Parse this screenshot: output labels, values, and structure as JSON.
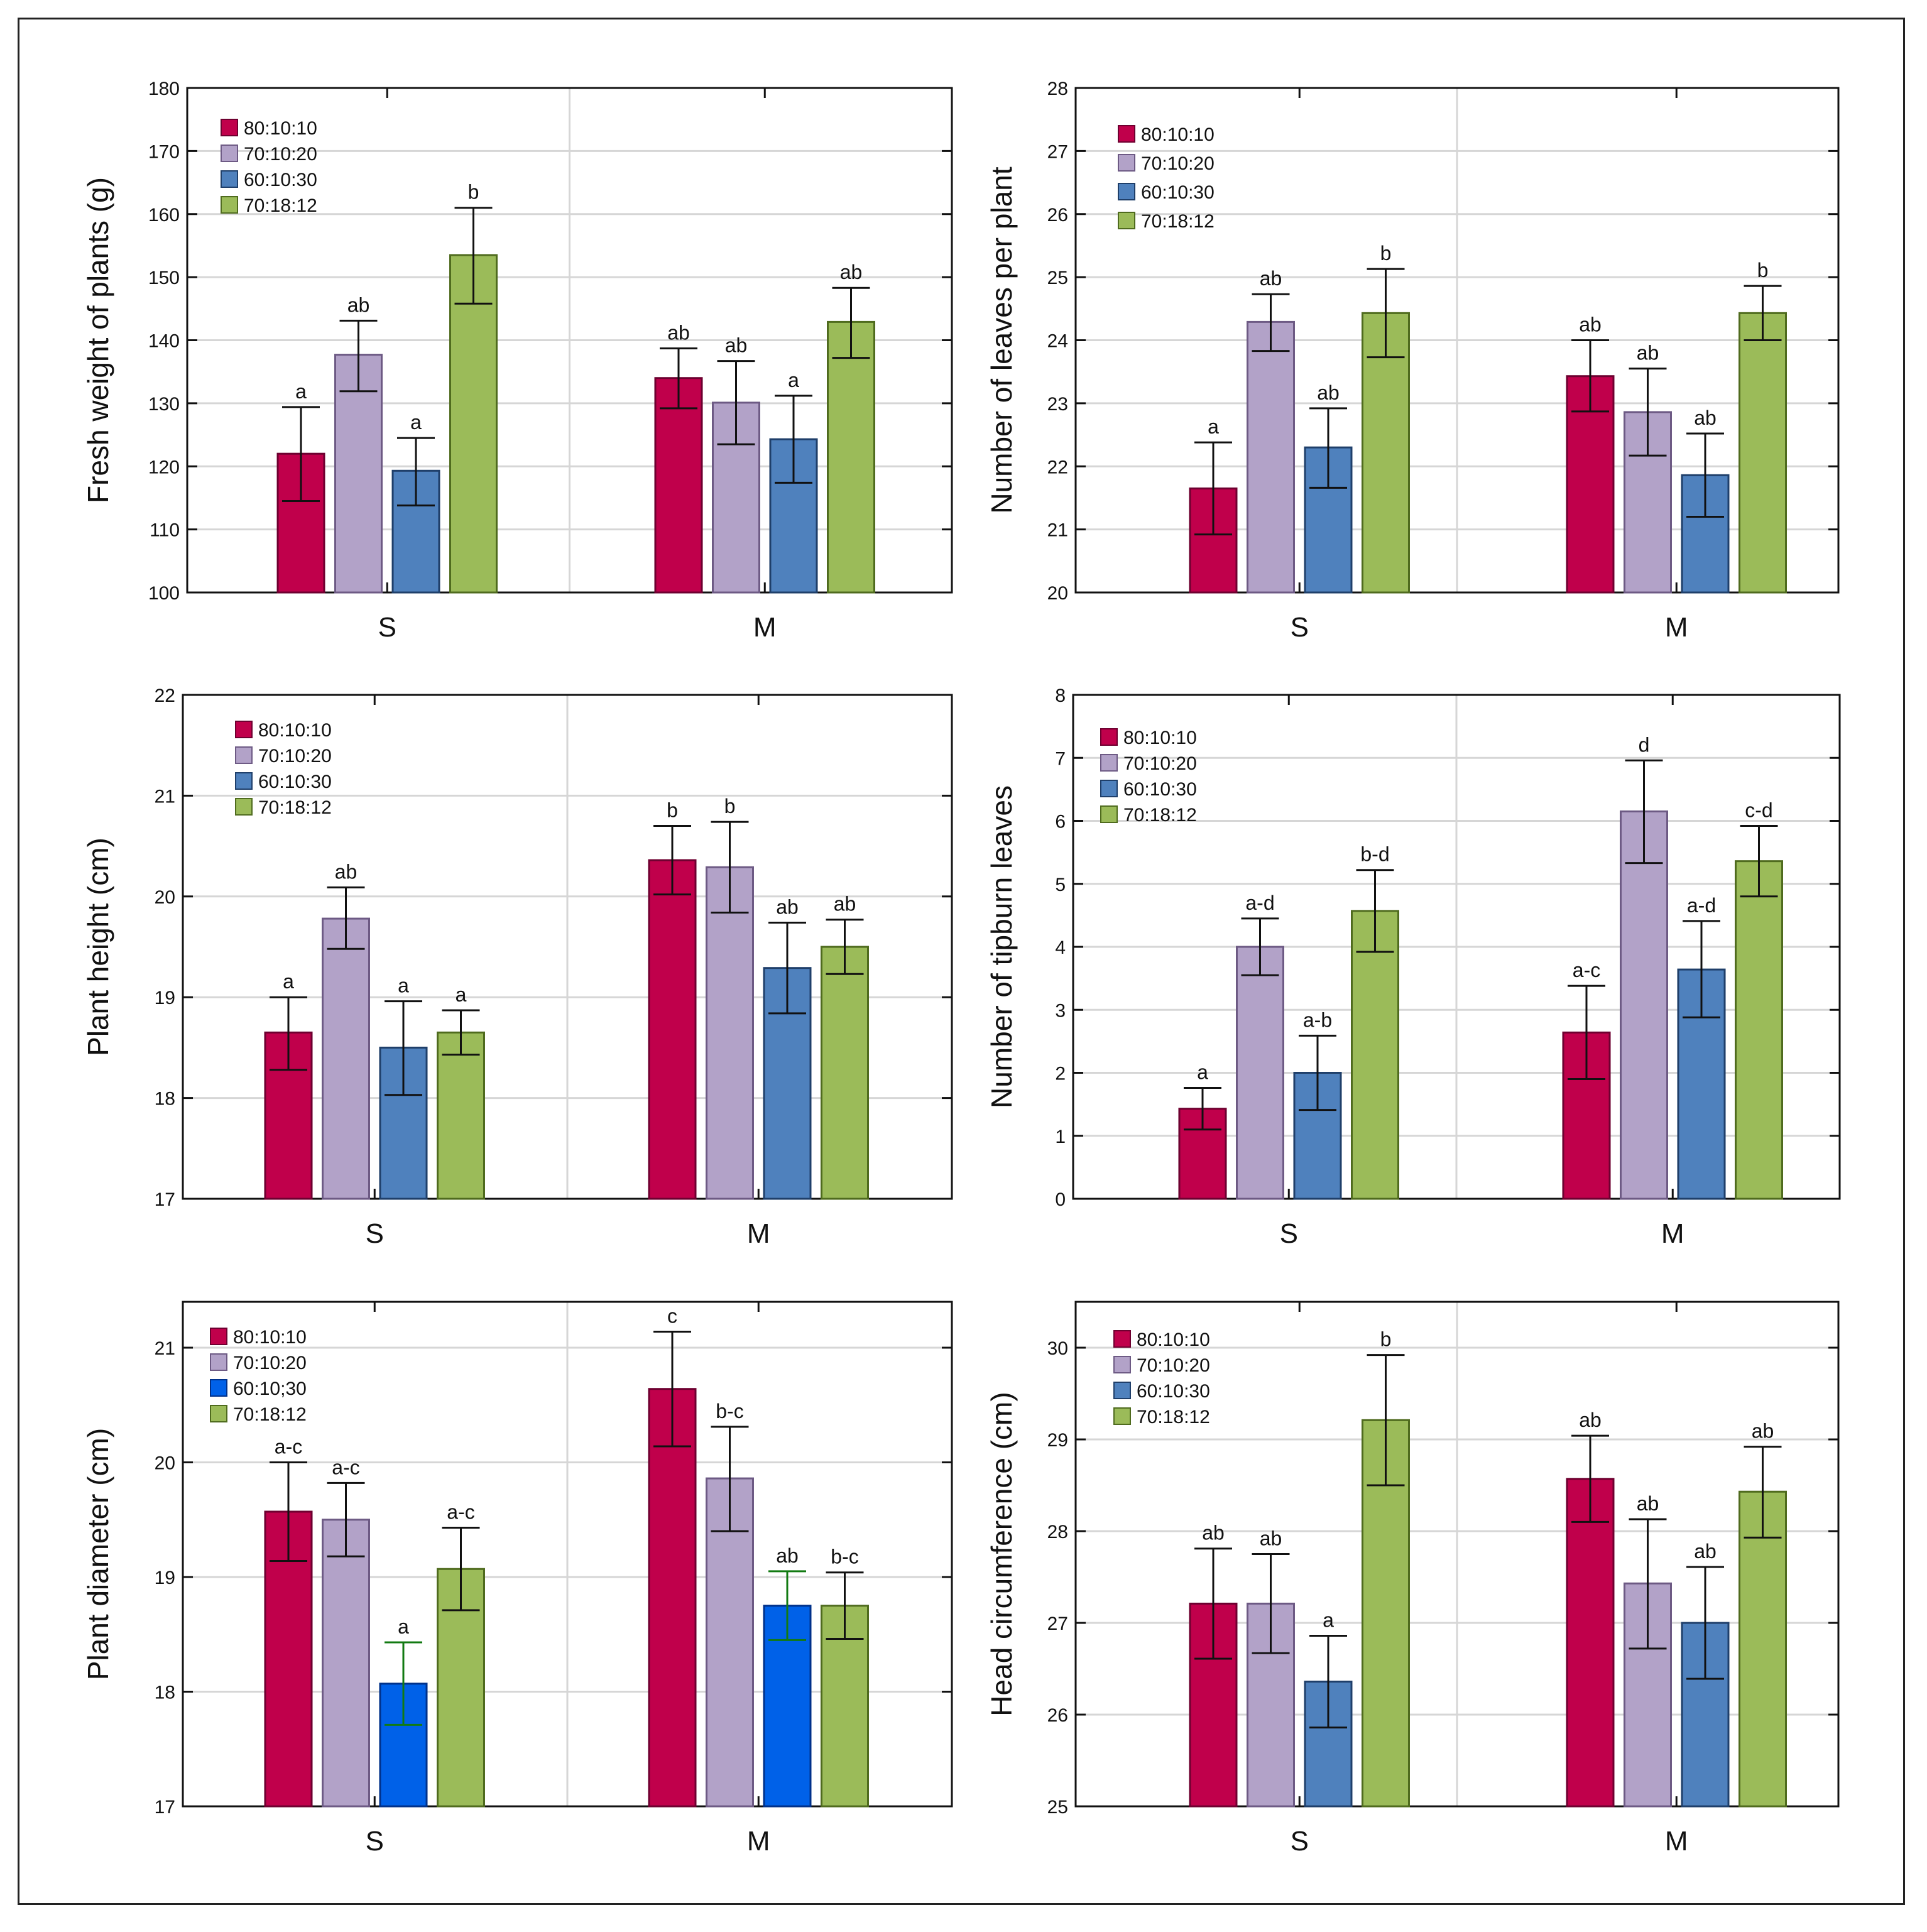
{
  "legend_colors": {
    "80:10:10": "#c0004b",
    "70:10:20": "#b2a2c8",
    "60:10:30": "#4f81bd",
    "60:10;30": "#0061e8",
    "70:18:12": "#9bbb59"
  },
  "legend_border_colors": {
    "80:10:10": "#6e0030",
    "70:10:20": "#6d5a84",
    "60:10:30": "#1f3f6a",
    "60:10;30": "#00318a",
    "70:18:12": "#4f6b1e"
  },
  "chart_data": [
    {
      "type": "bar",
      "ylabel": "Fresh weight of plants (g)",
      "categories": [
        "S",
        "M"
      ],
      "ylim": [
        100,
        180
      ],
      "yticks": [
        100,
        110,
        120,
        130,
        140,
        150,
        160,
        170,
        180
      ],
      "legend": [
        "80:10:10",
        "70:10:20",
        "60:10:30",
        "70:18:12"
      ],
      "series": [
        {
          "name": "80:10:10",
          "values": [
            122,
            134
          ],
          "err_low": [
            114.5,
            129.2
          ],
          "err_high": [
            129.4,
            138.7
          ],
          "letters": [
            "a",
            "ab"
          ]
        },
        {
          "name": "70:10:20",
          "values": [
            137.7,
            130.1
          ],
          "err_low": [
            131.9,
            123.5
          ],
          "err_high": [
            143.1,
            136.7
          ],
          "letters": [
            "ab",
            "ab"
          ]
        },
        {
          "name": "60:10:30",
          "values": [
            119.3,
            124.3
          ],
          "err_low": [
            113.8,
            117.4
          ],
          "err_high": [
            124.5,
            131.2
          ],
          "letters": [
            "a",
            "a"
          ]
        },
        {
          "name": "70:18:12",
          "values": [
            153.5,
            142.9
          ],
          "err_low": [
            145.8,
            137.2
          ],
          "err_high": [
            161,
            148.3
          ],
          "letters": [
            "b",
            "ab"
          ]
        }
      ]
    },
    {
      "type": "bar",
      "ylabel": "Number of leaves per plant",
      "categories": [
        "S",
        "M"
      ],
      "ylim": [
        20,
        28
      ],
      "yticks": [
        20,
        21,
        22,
        23,
        24,
        25,
        26,
        27,
        28
      ],
      "legend": [
        "80:10:10",
        "70:10:20",
        "60:10:30",
        "70:18:12"
      ],
      "series": [
        {
          "name": "80:10:10",
          "values": [
            21.65,
            23.43
          ],
          "err_low": [
            20.92,
            22.87
          ],
          "err_high": [
            22.38,
            24.0
          ],
          "letters": [
            "a",
            "ab"
          ]
        },
        {
          "name": "70:10:20",
          "values": [
            24.29,
            22.86
          ],
          "err_low": [
            23.83,
            22.17
          ],
          "err_high": [
            24.73,
            23.55
          ],
          "letters": [
            "ab",
            "ab"
          ]
        },
        {
          "name": "60:10:30",
          "values": [
            22.3,
            21.86
          ],
          "err_low": [
            21.66,
            21.2
          ],
          "err_high": [
            22.92,
            22.52
          ],
          "letters": [
            "ab",
            "ab"
          ]
        },
        {
          "name": "70:18:12",
          "values": [
            24.43,
            24.43
          ],
          "err_low": [
            23.73,
            24.0
          ],
          "err_high": [
            25.13,
            24.86
          ],
          "letters": [
            "b",
            "b"
          ]
        }
      ]
    },
    {
      "type": "bar",
      "ylabel": "Plant height (cm)",
      "categories": [
        "S",
        "M"
      ],
      "ylim": [
        17,
        22
      ],
      "yticks": [
        17,
        18,
        19,
        20,
        21,
        22
      ],
      "legend": [
        "80:10:10",
        "70:10:20",
        "60:10:30",
        "70:18:12"
      ],
      "series": [
        {
          "name": "80:10:10",
          "values": [
            18.65,
            20.36
          ],
          "err_low": [
            18.28,
            20.02
          ],
          "err_high": [
            19.0,
            20.7
          ],
          "letters": [
            "a",
            "b"
          ]
        },
        {
          "name": "70:10:20",
          "values": [
            19.78,
            20.29
          ],
          "err_low": [
            19.48,
            19.84
          ],
          "err_high": [
            20.09,
            20.74
          ],
          "letters": [
            "ab",
            "b"
          ]
        },
        {
          "name": "60:10:30",
          "values": [
            18.5,
            19.29
          ],
          "err_low": [
            18.03,
            18.84
          ],
          "err_high": [
            18.96,
            19.74
          ],
          "letters": [
            "a",
            "ab"
          ]
        },
        {
          "name": "70:18:12",
          "values": [
            18.65,
            19.5
          ],
          "err_low": [
            18.43,
            19.23
          ],
          "err_high": [
            18.87,
            19.77
          ],
          "letters": [
            "a",
            "ab"
          ]
        }
      ]
    },
    {
      "type": "bar",
      "ylabel": "Number of tipburn leaves",
      "categories": [
        "S",
        "M"
      ],
      "ylim": [
        0,
        8
      ],
      "yticks": [
        0,
        1,
        2,
        3,
        4,
        5,
        6,
        7,
        8
      ],
      "legend": [
        "80:10:10",
        "70:10:20",
        "60:10:30",
        "70:18:12"
      ],
      "series": [
        {
          "name": "80:10:10",
          "values": [
            1.43,
            2.64
          ],
          "err_low": [
            1.1,
            1.9
          ],
          "err_high": [
            1.76,
            3.38
          ],
          "letters": [
            "a",
            "a-c"
          ]
        },
        {
          "name": "70:10:20",
          "values": [
            4.0,
            6.15
          ],
          "err_low": [
            3.55,
            5.33
          ],
          "err_high": [
            4.45,
            6.96
          ],
          "letters": [
            "a-d",
            "d"
          ]
        },
        {
          "name": "60:10:30",
          "values": [
            2.0,
            3.64
          ],
          "err_low": [
            1.41,
            2.88
          ],
          "err_high": [
            2.59,
            4.41
          ],
          "letters": [
            "a-b",
            "a-d"
          ]
        },
        {
          "name": "70:18:12",
          "values": [
            4.57,
            5.36
          ],
          "err_low": [
            3.92,
            4.8
          ],
          "err_high": [
            5.22,
            5.92
          ],
          "letters": [
            "b-d",
            "c-d"
          ]
        }
      ]
    },
    {
      "type": "bar",
      "ylabel": "Plant diameter (cm)",
      "categories": [
        "S",
        "M"
      ],
      "ylim": [
        17,
        21.4
      ],
      "yticks": [
        17,
        18,
        19,
        20,
        21
      ],
      "legend": [
        "80:10:10",
        "70:10:20",
        "60:10;30",
        "70:18:12"
      ],
      "series": [
        {
          "name": "80:10:10",
          "values": [
            19.57,
            20.64
          ],
          "err_low": [
            19.14,
            20.14
          ],
          "err_high": [
            20.0,
            21.14
          ],
          "letters": [
            "a-c",
            "c"
          ]
        },
        {
          "name": "70:10:20",
          "values": [
            19.5,
            19.86
          ],
          "err_low": [
            19.18,
            19.4
          ],
          "err_high": [
            19.82,
            20.31
          ],
          "letters": [
            "a-c",
            "b-c"
          ]
        },
        {
          "name": "60:10;30",
          "values": [
            18.07,
            18.75
          ],
          "err_low": [
            17.71,
            18.45
          ],
          "err_high": [
            18.43,
            19.05
          ],
          "letters": [
            "a",
            "ab"
          ]
        },
        {
          "name": "70:18:12",
          "values": [
            19.07,
            18.75
          ],
          "err_low": [
            18.71,
            18.46
          ],
          "err_high": [
            19.43,
            19.04
          ],
          "letters": [
            "a-c",
            "b-c"
          ]
        }
      ]
    },
    {
      "type": "bar",
      "ylabel": "Head circumference (cm)",
      "categories": [
        "S",
        "M"
      ],
      "ylim": [
        25,
        30.5
      ],
      "yticks": [
        25,
        26,
        27,
        28,
        29,
        30
      ],
      "legend": [
        "80:10:10",
        "70:10:20",
        "60:10:30",
        "70:18:12"
      ],
      "series": [
        {
          "name": "80:10:10",
          "values": [
            27.21,
            28.57
          ],
          "err_low": [
            26.61,
            28.1
          ],
          "err_high": [
            27.81,
            29.04
          ],
          "letters": [
            "ab",
            "ab"
          ]
        },
        {
          "name": "70:10:20",
          "values": [
            27.21,
            27.43
          ],
          "err_low": [
            26.67,
            26.72
          ],
          "err_high": [
            27.75,
            28.13
          ],
          "letters": [
            "ab",
            "ab"
          ]
        },
        {
          "name": "60:10:30",
          "values": [
            26.36,
            27.0
          ],
          "err_low": [
            25.86,
            26.39
          ],
          "err_high": [
            26.86,
            27.61
          ],
          "letters": [
            "a",
            "ab"
          ]
        },
        {
          "name": "70:18:12",
          "values": [
            29.21,
            28.43
          ],
          "err_low": [
            28.5,
            27.93
          ],
          "err_high": [
            29.92,
            28.92
          ],
          "letters": [
            "b",
            "ab"
          ]
        }
      ]
    }
  ]
}
